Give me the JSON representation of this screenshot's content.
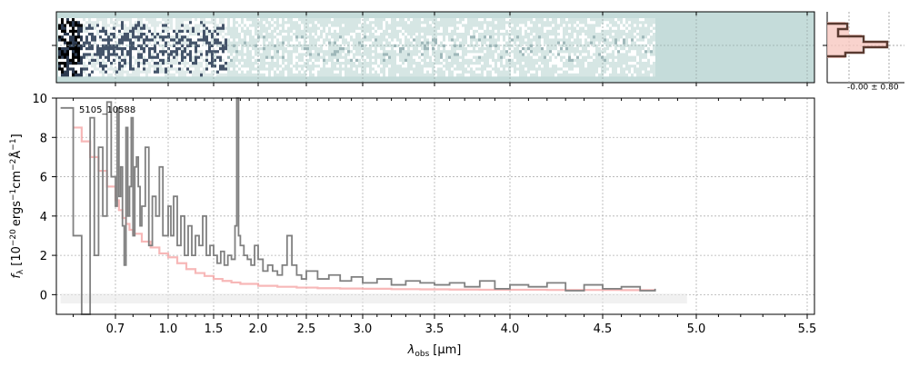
{
  "chart_data": [
    {
      "panel": "2d-spectrum",
      "type": "heatmap",
      "background_color": "#c5dcda",
      "description_colors": [
        "#000000",
        "#44546a",
        "#ffffff"
      ],
      "xlim": [
        0.56,
        5.52
      ],
      "grid": true
    },
    {
      "panel": "profile",
      "type": "line",
      "annotation": "-0.00 ± 0.80",
      "line_color": "#5a3a30",
      "fill_color": "#f8c8c0",
      "grid": true
    },
    {
      "panel": "1d-spectrum",
      "type": "line",
      "label": "5105_10588",
      "xlabel": "λobs [μm]",
      "xlabel_main": "λ",
      "xlabel_sub": "obs",
      "xlabel_units": "[μm]",
      "ylabel": "fλ [10−20 ergs−1cm−2Å−1]",
      "ylabel_main": "f",
      "ylabel_sub": "λ",
      "ylabel_a": "[10",
      "ylabel_a_sup": "−20",
      "ylabel_b": "ergs",
      "ylabel_b_sup": "−1",
      "ylabel_c": "cm",
      "ylabel_c_sup": "−2",
      "ylabel_d": "Å",
      "ylabel_d_sup": "−1",
      "ylabel_e": "]",
      "xlim": [
        0.56,
        5.52
      ],
      "ylim": [
        -1,
        10
      ],
      "grid": true,
      "xticks": [
        {
          "value": 0.7,
          "label": "0.7"
        },
        {
          "value": 1.0,
          "label": "1.0"
        },
        {
          "value": 1.5,
          "label": "1.5"
        },
        {
          "value": 2.0,
          "label": "2.0"
        },
        {
          "value": 2.5,
          "label": "2.5"
        },
        {
          "value": 3.0,
          "label": "3.0"
        },
        {
          "value": 3.5,
          "label": "3.5"
        },
        {
          "value": 4.0,
          "label": "4.0"
        },
        {
          "value": 4.5,
          "label": "4.5"
        },
        {
          "value": 5.0,
          "label": "5.0"
        },
        {
          "value": 5.5,
          "label": "5.5"
        }
      ],
      "yticks": [
        0,
        2,
        4,
        6,
        8,
        10
      ],
      "series": [
        {
          "role": "data",
          "color": "#808080",
          "x": [
            0.57,
            0.6,
            0.62,
            0.64,
            0.65,
            0.66,
            0.67,
            0.68,
            0.69,
            0.7,
            0.71,
            0.72,
            0.73,
            0.74,
            0.75,
            0.76,
            0.77,
            0.78,
            0.79,
            0.8,
            0.81,
            0.82,
            0.83,
            0.84,
            0.85,
            0.87,
            0.89,
            0.91,
            0.93,
            0.95,
            0.97,
            1.0,
            1.03,
            1.06,
            1.1,
            1.14,
            1.18,
            1.22,
            1.26,
            1.3,
            1.34,
            1.38,
            1.42,
            1.46,
            1.5,
            1.54,
            1.58,
            1.62,
            1.66,
            1.7,
            1.74,
            1.76,
            1.78,
            1.8,
            1.84,
            1.88,
            1.92,
            1.96,
            2.0,
            2.05,
            2.1,
            2.15,
            2.2,
            2.25,
            2.3,
            2.35,
            2.4,
            2.45,
            2.5,
            2.6,
            2.7,
            2.8,
            2.9,
            3.0,
            3.1,
            3.2,
            3.3,
            3.4,
            3.5,
            3.6,
            3.7,
            3.8,
            3.9,
            4.0,
            4.1,
            4.2,
            4.3,
            4.4,
            4.5,
            4.6,
            4.7,
            4.78
          ],
          "y": [
            9.5,
            3.0,
            -1.0,
            9.0,
            2.0,
            7.5,
            4.0,
            9.8,
            6.0,
            4.5,
            9.5,
            5.0,
            6.5,
            3.5,
            1.5,
            8.5,
            4.0,
            5.5,
            9.0,
            3.0,
            6.5,
            7.0,
            5.5,
            3.5,
            4.5,
            7.5,
            2.5,
            5.0,
            4.0,
            6.5,
            3.0,
            4.5,
            3.0,
            5.0,
            2.5,
            4.0,
            2.0,
            3.5,
            2.0,
            3.0,
            2.5,
            4.0,
            2.0,
            2.5,
            2.0,
            1.6,
            2.2,
            1.5,
            2.0,
            1.8,
            3.5,
            10.0,
            3.0,
            2.5,
            2.0,
            1.8,
            1.5,
            2.5,
            1.8,
            1.2,
            1.5,
            1.2,
            1.0,
            1.5,
            3.0,
            1.5,
            1.0,
            0.8,
            1.2,
            0.8,
            1.0,
            0.7,
            0.9,
            0.6,
            0.8,
            0.5,
            0.7,
            0.6,
            0.5,
            0.6,
            0.4,
            0.7,
            0.3,
            0.5,
            0.4,
            0.6,
            0.2,
            0.5,
            0.3,
            0.4,
            0.2,
            0.3
          ]
        },
        {
          "role": "model",
          "color": "#f4a0a0",
          "x": [
            0.6,
            0.62,
            0.64,
            0.66,
            0.68,
            0.7,
            0.72,
            0.74,
            0.76,
            0.78,
            0.8,
            0.85,
            0.9,
            0.95,
            1.0,
            1.1,
            1.2,
            1.3,
            1.4,
            1.5,
            1.6,
            1.7,
            1.8,
            2.0,
            2.2,
            2.4,
            2.6,
            2.8,
            3.0,
            3.2,
            3.4,
            3.6,
            3.8,
            4.0,
            4.2,
            4.4,
            4.6,
            4.78
          ],
          "y": [
            8.5,
            7.8,
            7.0,
            6.3,
            5.5,
            4.8,
            4.3,
            3.9,
            3.6,
            3.3,
            3.1,
            2.7,
            2.4,
            2.1,
            1.9,
            1.6,
            1.3,
            1.1,
            0.95,
            0.8,
            0.7,
            0.62,
            0.55,
            0.45,
            0.4,
            0.36,
            0.33,
            0.31,
            0.3,
            0.28,
            0.27,
            0.26,
            0.25,
            0.25,
            0.24,
            0.24,
            0.23,
            0.23
          ]
        },
        {
          "role": "band",
          "color": "#e8e8e8",
          "x": [
            0.57,
            4.95
          ],
          "y": [
            0.0,
            0.0
          ]
        }
      ]
    }
  ]
}
